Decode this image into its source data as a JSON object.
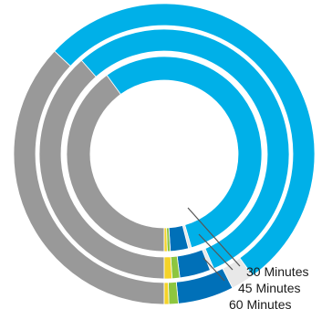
{
  "chart_data": {
    "type": "pie",
    "variant": "nested-donut",
    "rings": [
      {
        "name": "60 Minutes",
        "slices": [
          {
            "color": "#00b0e8",
            "share": 0.53
          },
          {
            "color": "#e8e8e8",
            "share": 0.025
          },
          {
            "color": "#0070b8",
            "share": 0.06
          },
          {
            "color": "#8dc63f",
            "share": 0.01
          },
          {
            "color": "#f5d328",
            "share": 0.005
          },
          {
            "color": "#999999",
            "share": 0.37
          }
        ]
      },
      {
        "name": "45 Minutes",
        "slices": [
          {
            "color": "#00b0e8",
            "share": 0.55
          },
          {
            "color": "#e8e8e8",
            "share": 0.005
          },
          {
            "color": "#0070b8",
            "share": 0.04
          },
          {
            "color": "#8dc63f",
            "share": 0.01
          },
          {
            "color": "#f5d328",
            "share": 0.01
          },
          {
            "color": "#999999",
            "share": 0.385
          }
        ]
      },
      {
        "name": "30 Minutes",
        "slices": [
          {
            "color": "#00b0e8",
            "share": 0.555
          },
          {
            "color": "#e8e8e8",
            "share": 0.005
          },
          {
            "color": "#0070b8",
            "share": 0.03
          },
          {
            "color": "#8dc63f",
            "share": 0.005
          },
          {
            "color": "#f5d328",
            "share": 0.005
          },
          {
            "color": "#999999",
            "share": 0.4
          }
        ]
      }
    ],
    "start_angle_deg": 90,
    "direction": "clockwise",
    "legend": "none"
  }
}
